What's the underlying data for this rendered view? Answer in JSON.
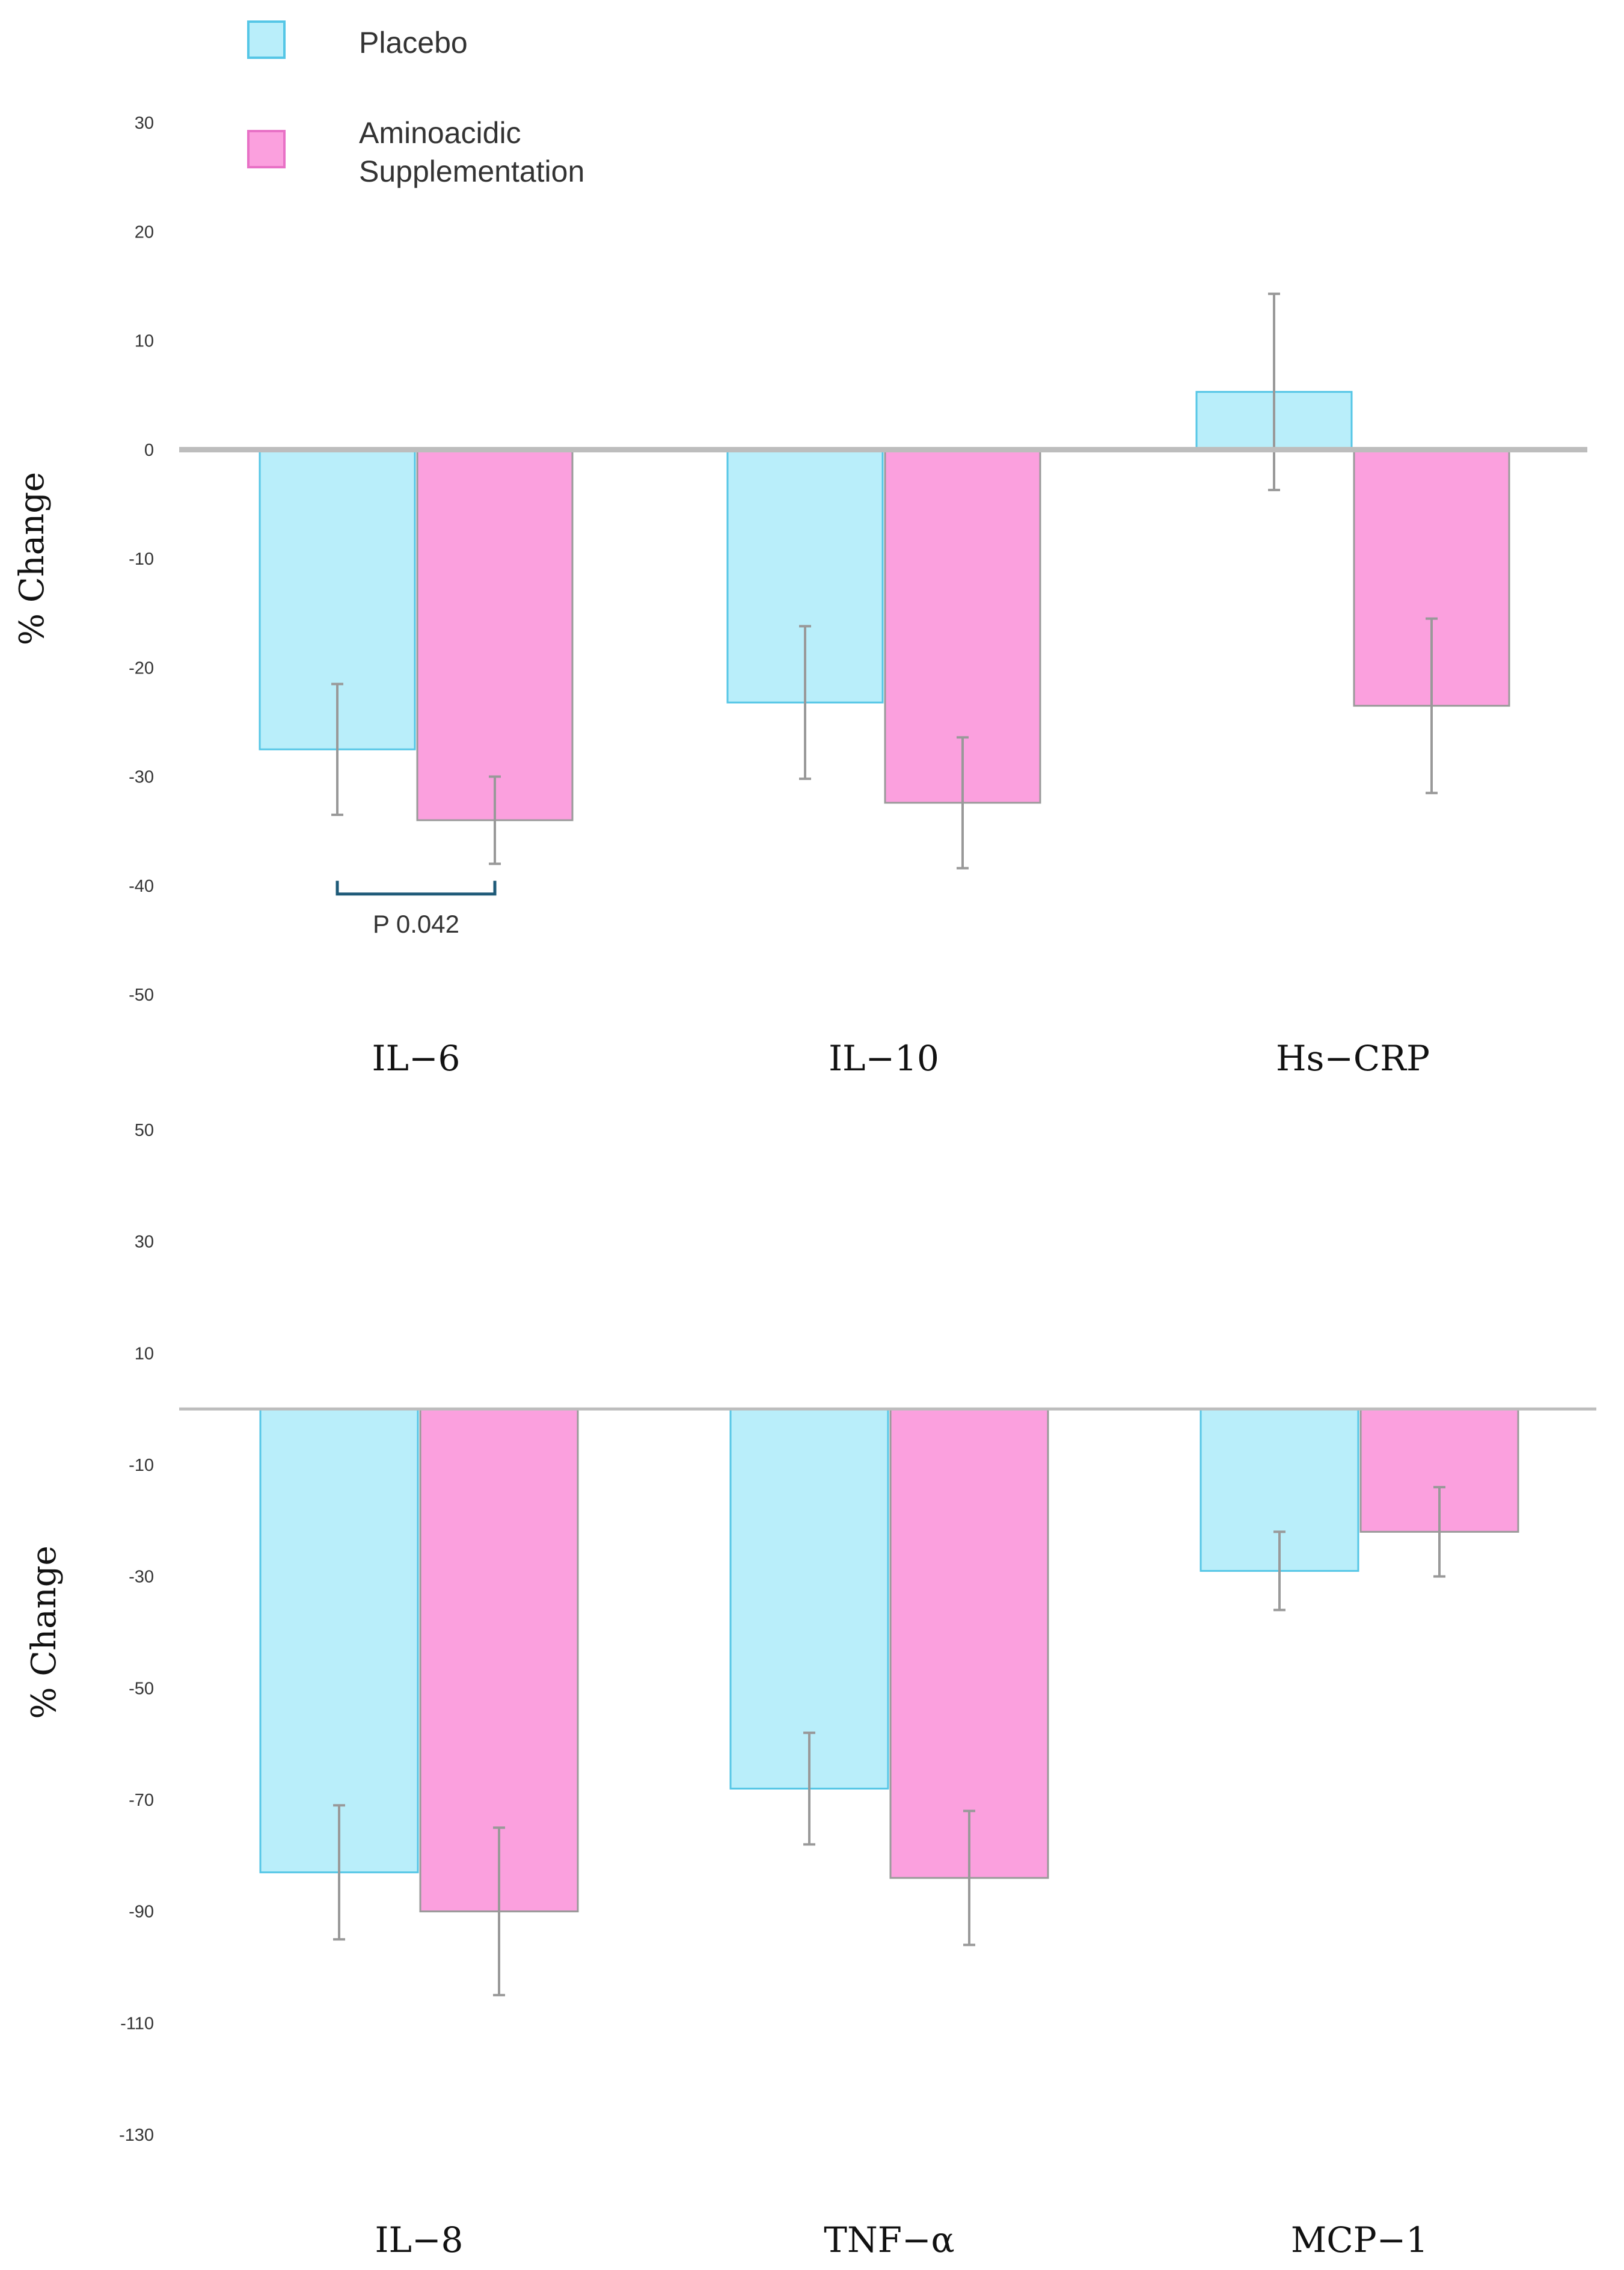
{
  "colors": {
    "placebo_fill": "#b9eefa",
    "placebo_stroke": "#55c6e6",
    "supp_fill": "#fba0de",
    "supp_stroke": "#e871c6",
    "bar_edge": "#9a9a9a",
    "error_bar": "#999999",
    "zero_line": "#bdbdbd",
    "bracket": "#1e5a78"
  },
  "legend": {
    "placebo": "Placebo",
    "supplementation_line1": "Aminoacidic",
    "supplementation_line2": "Supplementation"
  },
  "chart_data": [
    {
      "type": "bar",
      "title": "",
      "xlabel": "",
      "ylabel": "% Change",
      "ylim": [
        -50,
        30
      ],
      "yticks": [
        30,
        20,
        10,
        0,
        -10,
        -20,
        -30,
        -40,
        -50
      ],
      "grid": false,
      "categories": [
        "IL−6",
        "IL−10",
        "Hs−CRP"
      ],
      "series": [
        {
          "name": "Placebo",
          "values": [
            -27.5,
            -23.2,
            5.3
          ],
          "error": [
            6,
            7,
            9
          ]
        },
        {
          "name": "Aminoacidic Supplementation",
          "values": [
            -34,
            -32.4,
            -23.5
          ],
          "error": [
            4,
            6,
            8
          ]
        }
      ],
      "annotations": [
        {
          "text": "P 0.042",
          "between": [
            "Placebo",
            "Aminoacidic Supplementation"
          ],
          "category": "IL−6",
          "y": -40
        }
      ]
    },
    {
      "type": "bar",
      "title": "",
      "xlabel": "",
      "ylabel": "% Change",
      "ylim": [
        -130,
        50
      ],
      "yticks": [
        50,
        30,
        10,
        -10,
        -30,
        -50,
        -70,
        -90,
        -110,
        -130
      ],
      "grid": false,
      "categories": [
        "IL−8",
        "TNF−α",
        "MCP−1"
      ],
      "series": [
        {
          "name": "Placebo",
          "values": [
            -83,
            -68,
            -29
          ],
          "error": [
            12,
            10,
            7
          ]
        },
        {
          "name": "Aminoacidic Supplementation",
          "values": [
            -90,
            -84,
            -22
          ],
          "error": [
            15,
            12,
            8
          ]
        }
      ]
    }
  ]
}
